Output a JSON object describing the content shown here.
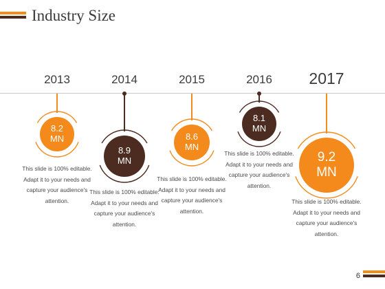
{
  "slide": {
    "title": "Industry Size",
    "page_number": "6"
  },
  "colors": {
    "orange": "#F48A1B",
    "brown": "#4C2C21",
    "line": "#C8C8C8"
  },
  "timeline": [
    {
      "year": "2013",
      "value": "8.2\nMN",
      "theme": "orange",
      "description": "This slide is 100% editable. Adapt it to your needs and capture your audience's attention."
    },
    {
      "year": "2014",
      "value": "8.9\nMN",
      "theme": "brown",
      "description": "This slide is 100% editable. Adapt it to your needs and capture your audience's attention."
    },
    {
      "year": "2015",
      "value": "8.6\nMN",
      "theme": "orange",
      "description": "This slide is 100% editable. Adapt it to your needs and capture your audience's attention."
    },
    {
      "year": "2016",
      "value": "8.1\nMN",
      "theme": "brown",
      "description": "This slide is 100% editable. Adapt it to your needs and capture your audience's attention."
    },
    {
      "year": "2017",
      "value": "9.2\nMN",
      "theme": "orange",
      "description": "This slide is 100% editable. Adapt it to your needs and capture your audience's attention."
    }
  ]
}
